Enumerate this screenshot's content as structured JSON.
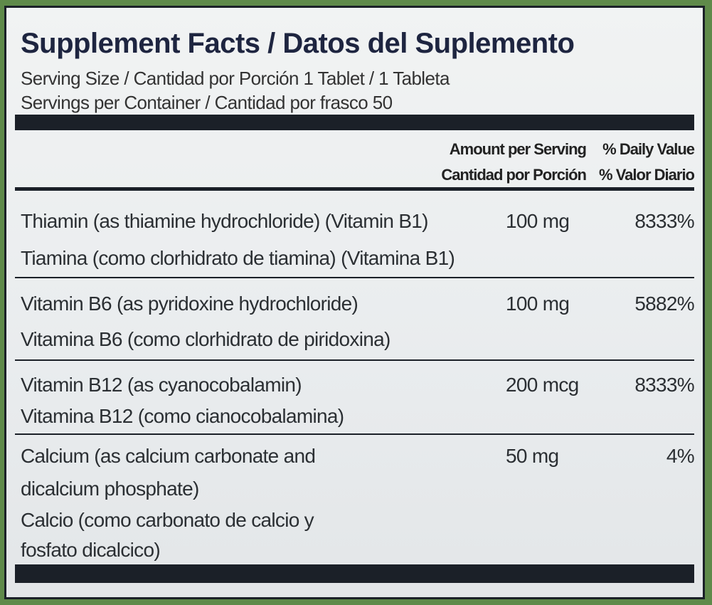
{
  "label": {
    "title": "Supplement Facts / Datos del Suplemento",
    "serving_size": "Serving Size / Cantidad por Porción 1 Tablet / 1 Tableta",
    "servings_per_container": "Servings per Container / Cantidad por frasco 50",
    "columns": {
      "amount": [
        "Amount per Serving",
        "Cantidad por Porción"
      ],
      "daily_value": [
        "% Daily Value",
        "% Valor Diario"
      ]
    },
    "rows": [
      {
        "name": [
          "Thiamin (as thiamine hydrochloride) (Vitamin B1)",
          "Tiamina (como clorhidrato de tiamina) (Vitamina B1)"
        ],
        "amount": "100 mg",
        "daily_value": "8333%"
      },
      {
        "name": [
          "Vitamin B6 (as pyridoxine hydrochloride)",
          "Vitamina B6 (como clorhidrato de piridoxina)"
        ],
        "amount": "100 mg",
        "daily_value": "5882%"
      },
      {
        "name": [
          "Vitamin B12 (as cyanocobalamin)",
          "Vitamina B12 (como cianocobalamina)"
        ],
        "amount": "200 mcg",
        "daily_value": "8333%"
      },
      {
        "name": [
          "Calcium (as calcium carbonate and",
          "dicalcium phosphate)",
          "Calcio (como carbonato de calcio y",
          "fosfato dicalcico)"
        ],
        "amount": "50 mg",
        "daily_value": "4%"
      }
    ]
  }
}
